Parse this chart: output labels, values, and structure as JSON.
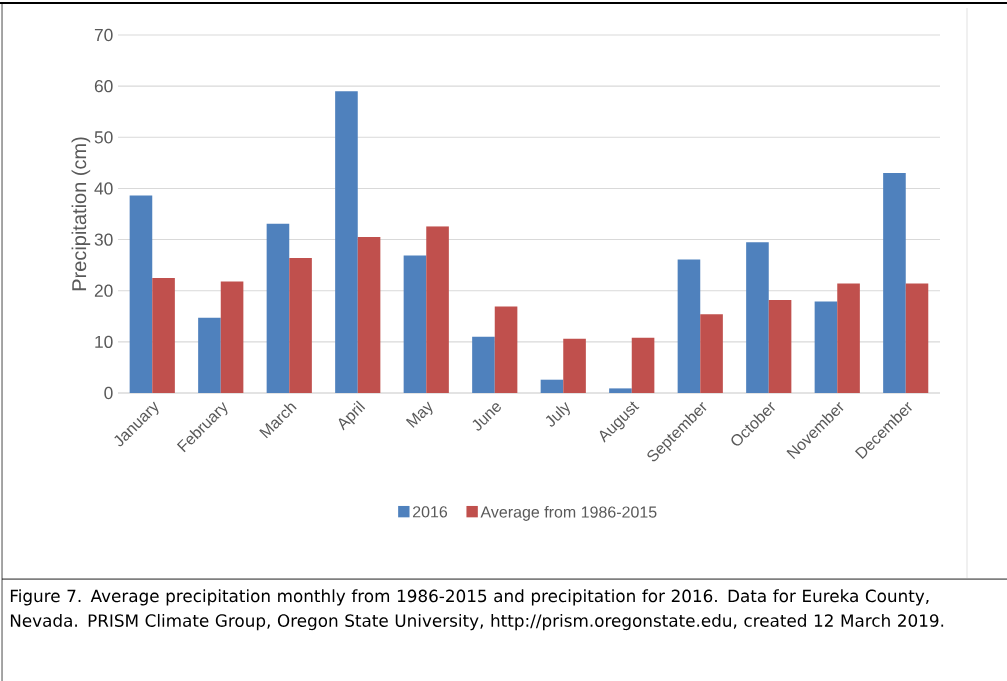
{
  "chart_data": {
    "type": "bar",
    "ylabel": "Precipitation (cm)",
    "categories": [
      "January",
      "February",
      "March",
      "April",
      "May",
      "June",
      "July",
      "August",
      "September",
      "October",
      "November",
      "December"
    ],
    "series": [
      {
        "name": "2016",
        "color": "#4f81bd",
        "values": [
          38.6,
          14.7,
          33.1,
          59,
          26.9,
          11,
          2.6,
          0.9,
          26.1,
          29.5,
          17.9,
          43
        ]
      },
      {
        "name": "Average from 1986-2015",
        "color": "#c0504d",
        "values": [
          22.5,
          21.8,
          26.4,
          30.5,
          32.6,
          16.9,
          10.6,
          10.8,
          15.4,
          18.2,
          21.4,
          21.4
        ]
      }
    ],
    "ylim": [
      0,
      70
    ],
    "yticks": [
      0,
      10,
      20,
      30,
      40,
      50,
      60,
      70
    ],
    "grid": "y",
    "legend": "bottom",
    "annotations": [
      "Figure 7. Average precipitation monthly from 1986-2015 and precipitation for 2016. Data for Eureka County, Nevada. PRISM Climate Group, Oregon State University, http://prism.oregonstate.edu, created 12 March 2019."
    ]
  }
}
